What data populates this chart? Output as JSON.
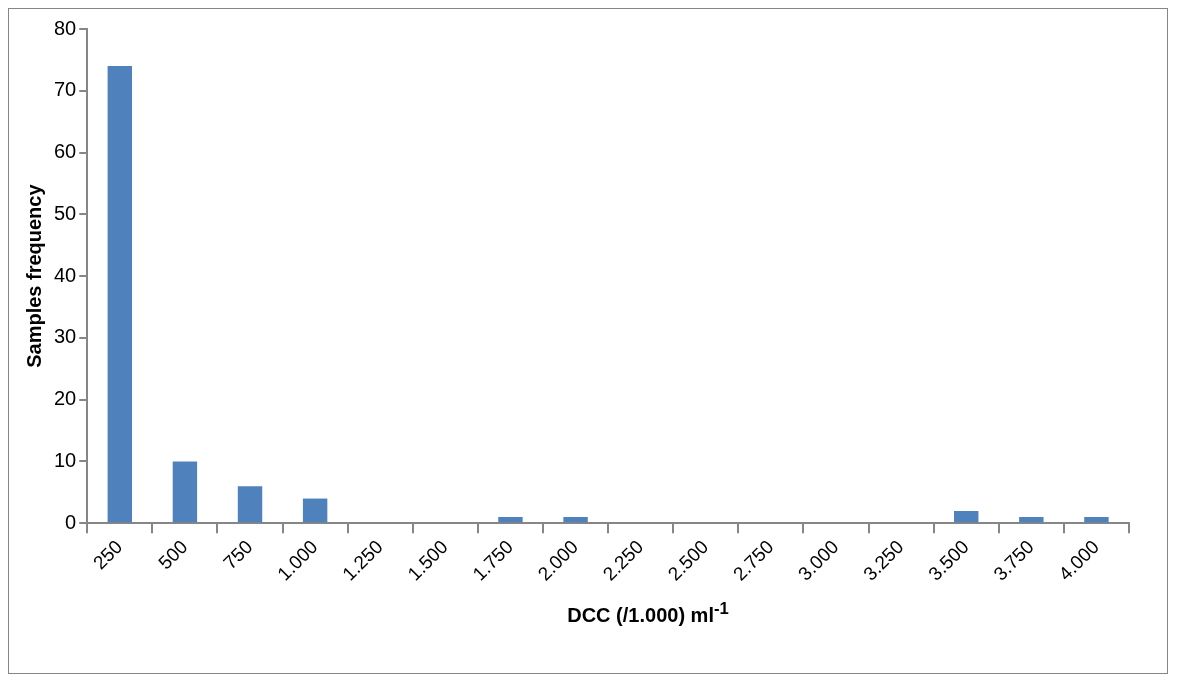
{
  "chart_data": {
    "type": "bar",
    "xlabel": "DCC (/1.000) ml$^{-1}$",
    "ylabel": "Samples frequency",
    "categories": [
      "250",
      "500",
      "750",
      "1.000",
      "1.250",
      "1.500",
      "1.750",
      "2.000",
      "2.250",
      "2.500",
      "2.750",
      "3.000",
      "3.250",
      "3.500",
      "3.750",
      "4.000"
    ],
    "values": [
      74,
      10,
      6,
      4,
      0,
      0,
      1,
      1,
      0,
      0,
      0,
      0,
      0,
      2,
      1,
      1
    ],
    "color": "#4f81bd",
    "ylim": [
      0,
      80
    ],
    "yticks": [
      0,
      10,
      20,
      30,
      40,
      50,
      60,
      70,
      80
    ],
    "grid": false,
    "legend": false
  }
}
